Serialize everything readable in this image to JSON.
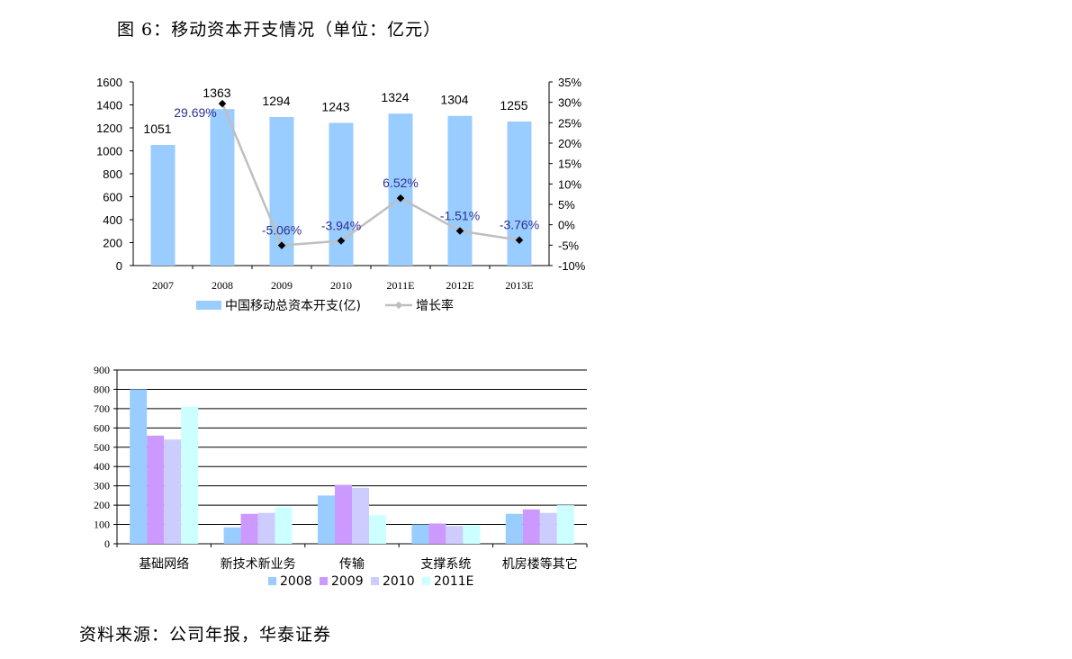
{
  "figure_title": "图 6：移动资本开支情况（单位：亿元）",
  "source_note": "资料来源：公司年报，华泰证券",
  "colors": {
    "bar": "#99ccff",
    "line": "#bfbfbf",
    "marker": "#000000",
    "pct_label": "#2e3192",
    "s2008": "#99ccff",
    "s2009": "#cc99ff",
    "s2010": "#ccccff",
    "s2011E": "#ccffff"
  },
  "chart_data": [
    {
      "type": "bar",
      "title": "",
      "categories": [
        "2007",
        "2008",
        "2009",
        "2010",
        "2011E",
        "2012E",
        "2013E"
      ],
      "series": [
        {
          "name": "中国移动总资本开支(亿)",
          "axis": "left",
          "type": "bar",
          "values": [
            1051,
            1363,
            1294,
            1243,
            1324,
            1304,
            1255
          ]
        },
        {
          "name": "增长率",
          "axis": "right",
          "type": "line",
          "values": [
            null,
            29.69,
            -5.06,
            -3.94,
            6.52,
            -1.51,
            -3.76
          ],
          "value_labels": [
            "",
            "29.69%",
            "-5.06%",
            "-3.94%",
            "6.52%",
            "-1.51%",
            "-3.76%"
          ]
        }
      ],
      "ylim_left": [
        0,
        1600
      ],
      "yticks_left": [
        "0",
        "200",
        "400",
        "600",
        "800",
        "1000",
        "1200",
        "1400",
        "1600"
      ],
      "ylim_right": [
        -10,
        35
      ],
      "yticks_right": [
        "-10%",
        "-5%",
        "0%",
        "5%",
        "10%",
        "15%",
        "20%",
        "25%",
        "30%",
        "35%"
      ],
      "grid": false,
      "legend_position": "bottom"
    },
    {
      "type": "bar",
      "title": "",
      "categories": [
        "基础网络",
        "新技术新业务",
        "传输",
        "支撑系统",
        "机房楼等其它"
      ],
      "series": [
        {
          "name": "2008",
          "values": [
            800,
            85,
            250,
            100,
            155
          ]
        },
        {
          "name": "2009",
          "values": [
            560,
            155,
            305,
            105,
            178
          ]
        },
        {
          "name": "2010",
          "values": [
            540,
            160,
            290,
            92,
            160
          ]
        },
        {
          "name": "2011E",
          "values": [
            710,
            190,
            148,
            95,
            200
          ]
        }
      ],
      "ylim": [
        0,
        900
      ],
      "yticks": [
        "0",
        "100",
        "200",
        "300",
        "400",
        "500",
        "600",
        "700",
        "800",
        "900"
      ],
      "grid": true,
      "legend_position": "bottom"
    }
  ]
}
